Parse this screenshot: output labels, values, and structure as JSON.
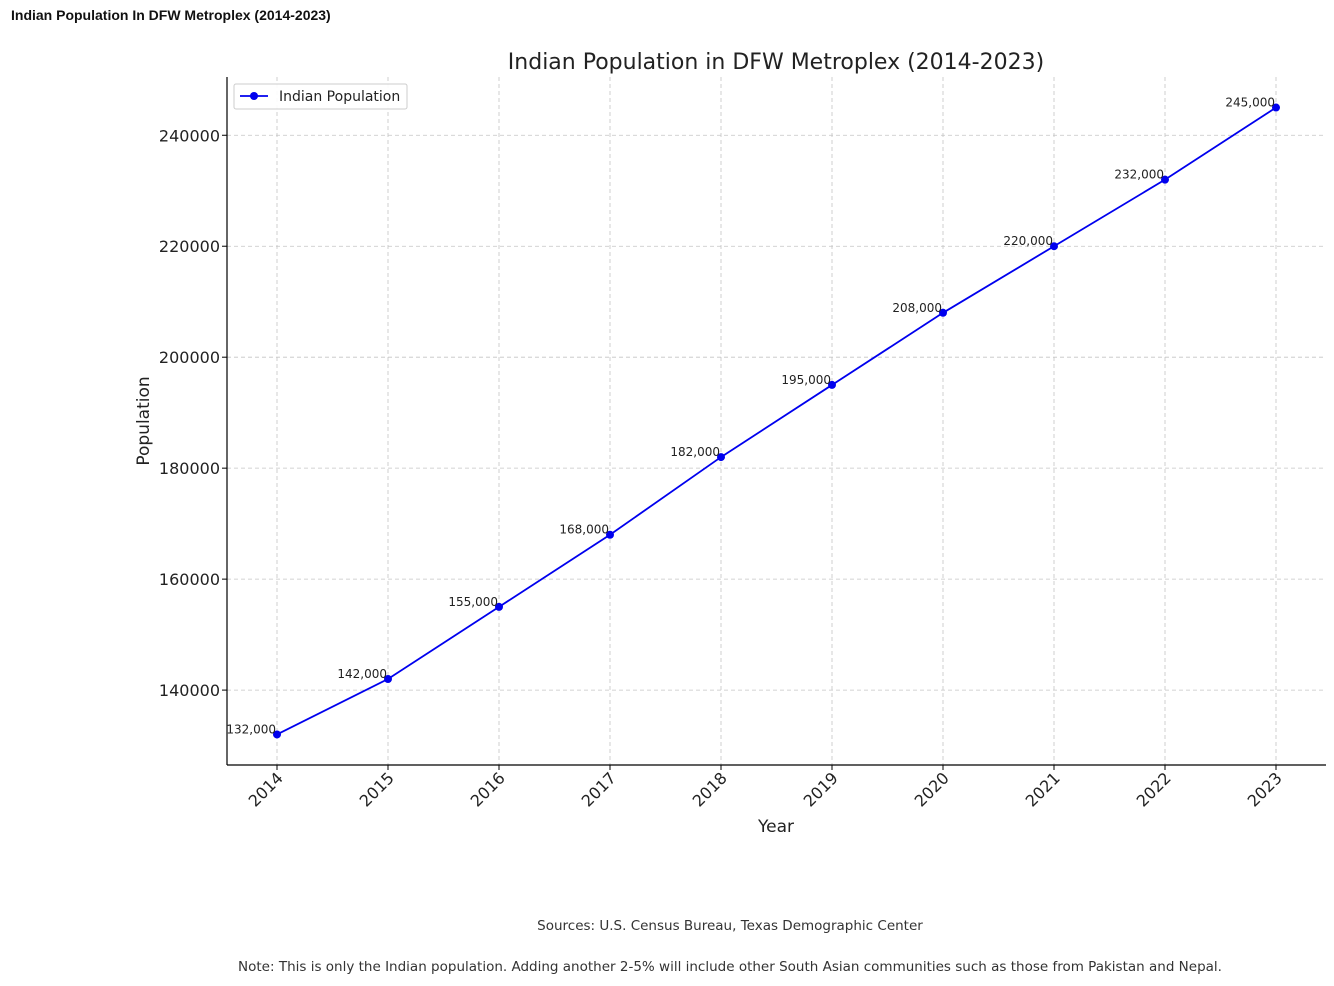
{
  "page": {
    "heading": "Indian Population In DFW Metroplex (2014-2023)",
    "sources": "Sources: U.S. Census Bureau, Texas Demographic Center",
    "note": "Note: This is only the Indian population. Adding another 2-5% will include other South Asian communities such as those from Pakistan and Nepal."
  },
  "chart_data": {
    "type": "line",
    "title": "Indian Population in DFW Metroplex (2014-2023)",
    "xlabel": "Year",
    "ylabel": "Population",
    "categories": [
      "2014",
      "2015",
      "2016",
      "2017",
      "2018",
      "2019",
      "2020",
      "2021",
      "2022",
      "2023"
    ],
    "series": [
      {
        "name": "Indian Population",
        "color": "#0000ee",
        "values": [
          132000,
          142000,
          155000,
          168000,
          182000,
          195000,
          208000,
          220000,
          232000,
          245000
        ],
        "data_labels": [
          "132,000",
          "142,000",
          "155,000",
          "168,000",
          "182,000",
          "195,000",
          "208,000",
          "220,000",
          "232,000",
          "245,000"
        ]
      }
    ],
    "yticks": [
      140000,
      160000,
      180000,
      200000,
      220000,
      240000
    ],
    "ylim": [
      126500,
      250500
    ],
    "grid": true,
    "legend_position": "top-left",
    "x_tick_rotation": 45
  }
}
